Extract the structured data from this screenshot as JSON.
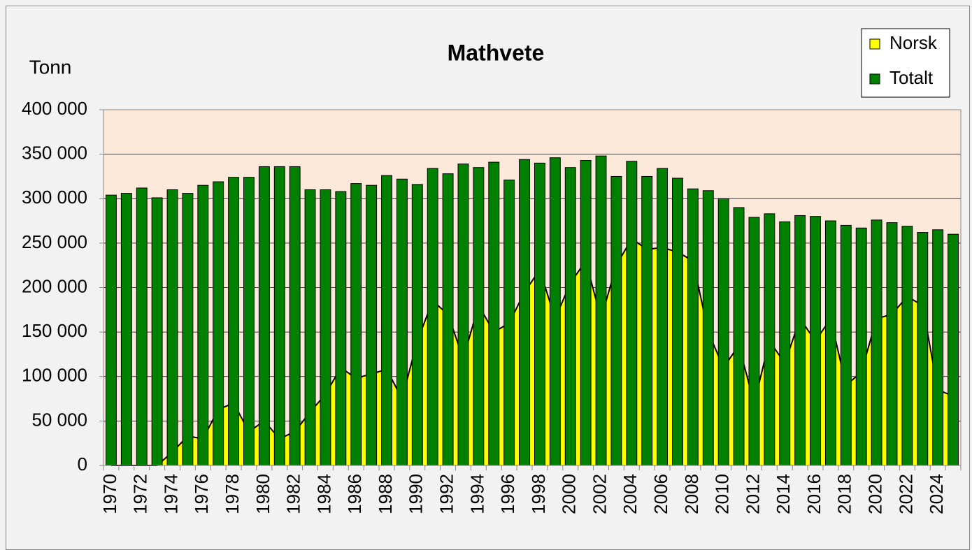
{
  "chart_data": {
    "type": "bar_area",
    "title": "Mathvete",
    "y_label": "Tonn",
    "categories": [
      "1970",
      null,
      "1972",
      null,
      "1974",
      null,
      "1976",
      null,
      "1978",
      null,
      "1980",
      null,
      "1982",
      null,
      "1984",
      null,
      "1986",
      null,
      "1988",
      null,
      "1990",
      null,
      "1992",
      null,
      "1994",
      null,
      "1996",
      null,
      "1998",
      null,
      "2000",
      null,
      "2002",
      null,
      "2004",
      null,
      "2006",
      null,
      "2008",
      null,
      "2010",
      null,
      "2012",
      null,
      "2014",
      null,
      "2016",
      null,
      "2018",
      null,
      "2020",
      null,
      "2022",
      null,
      "2024",
      null
    ],
    "series": [
      {
        "name": "Norsk",
        "color": "#ffff00",
        "values": [
          0,
          0,
          0,
          0,
          15000,
          33000,
          30000,
          63000,
          70000,
          38000,
          50000,
          30000,
          38000,
          60000,
          80000,
          110000,
          98000,
          103000,
          108000,
          75000,
          140000,
          185000,
          170000,
          120000,
          180000,
          150000,
          160000,
          195000,
          220000,
          165000,
          205000,
          230000,
          165000,
          225000,
          255000,
          243000,
          245000,
          240000,
          230000,
          150000,
          110000,
          135000,
          70000,
          140000,
          115000,
          165000,
          140000,
          165000,
          90000,
          105000,
          165000,
          170000,
          190000,
          180000,
          85000,
          78000
        ]
      },
      {
        "name": "Totalt",
        "color": "#008000",
        "values": [
          304000,
          306000,
          312000,
          301000,
          310000,
          306000,
          315000,
          319000,
          324000,
          324000,
          336000,
          336000,
          336000,
          310000,
          310000,
          308000,
          317000,
          315000,
          326000,
          322000,
          316000,
          334000,
          328000,
          339000,
          335000,
          341000,
          321000,
          344000,
          340000,
          346000,
          335000,
          343000,
          348000,
          325000,
          342000,
          325000,
          334000,
          323000,
          311000,
          309000,
          300000,
          290000,
          279000,
          283000,
          274000,
          281000,
          280000,
          275000,
          270000,
          267000,
          276000,
          273000,
          269000,
          262000,
          265000,
          260000
        ]
      }
    ],
    "ylim": [
      0,
      400000
    ],
    "yticks": [
      0,
      {
        "value": 50000,
        "label": "50 000"
      },
      {
        "value": 100000,
        "label": "100 000"
      },
      {
        "value": 150000,
        "label": "150 000"
      },
      {
        "value": 200000,
        "label": "200 000"
      },
      {
        "value": 250000,
        "label": "250 000"
      },
      {
        "value": 300000,
        "label": "300 000"
      },
      {
        "value": 350000,
        "label": "350 000"
      },
      {
        "value": 400000,
        "label": "400 000"
      }
    ],
    "grid": true,
    "legend": "top-right"
  }
}
